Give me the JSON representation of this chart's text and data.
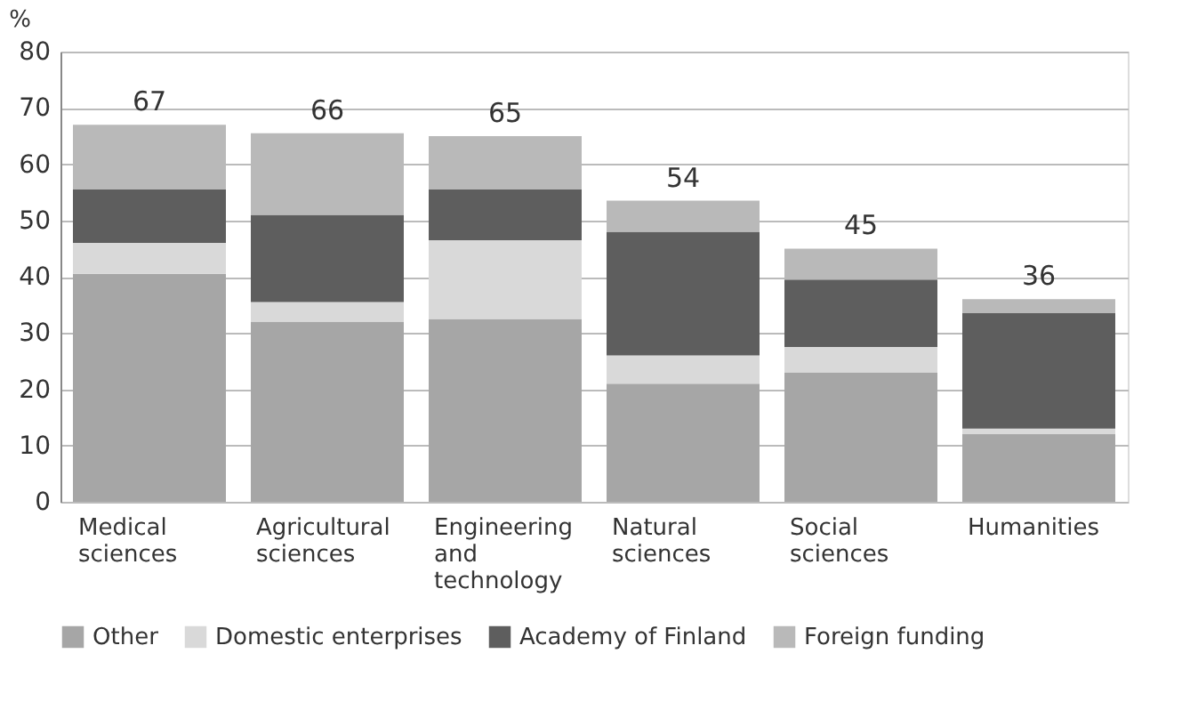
{
  "chart_data": {
    "type": "bar",
    "stacked": true,
    "ylabel": "%",
    "categories": [
      "Medical sciences",
      "Agricultural sciences",
      "Engineering and technology",
      "Natural sciences",
      "Social sciences",
      "Humanities"
    ],
    "series": [
      {
        "name": "Other",
        "color": "#a6a6a6",
        "values": [
          40.5,
          32,
          32.5,
          21,
          23,
          12
        ]
      },
      {
        "name": "Domestic enterprises",
        "color": "#d9d9d9",
        "values": [
          5.5,
          3.5,
          14,
          5,
          4.5,
          1
        ]
      },
      {
        "name": "Academy of Finland",
        "color": "#5e5e5e",
        "values": [
          9.5,
          15.5,
          9,
          22,
          12,
          20.5
        ]
      },
      {
        "name": "Foreign funding",
        "color": "#b9b9b9",
        "values": [
          11.5,
          14.5,
          9.5,
          5.5,
          5.5,
          2.5
        ]
      }
    ],
    "totals": [
      "67",
      "66",
      "65",
      "54",
      "45",
      "36"
    ],
    "ylim": [
      0,
      80
    ],
    "yticks": [
      0,
      10,
      20,
      30,
      40,
      50,
      60,
      70,
      80
    ],
    "grid": "y",
    "legend": "bottom"
  }
}
